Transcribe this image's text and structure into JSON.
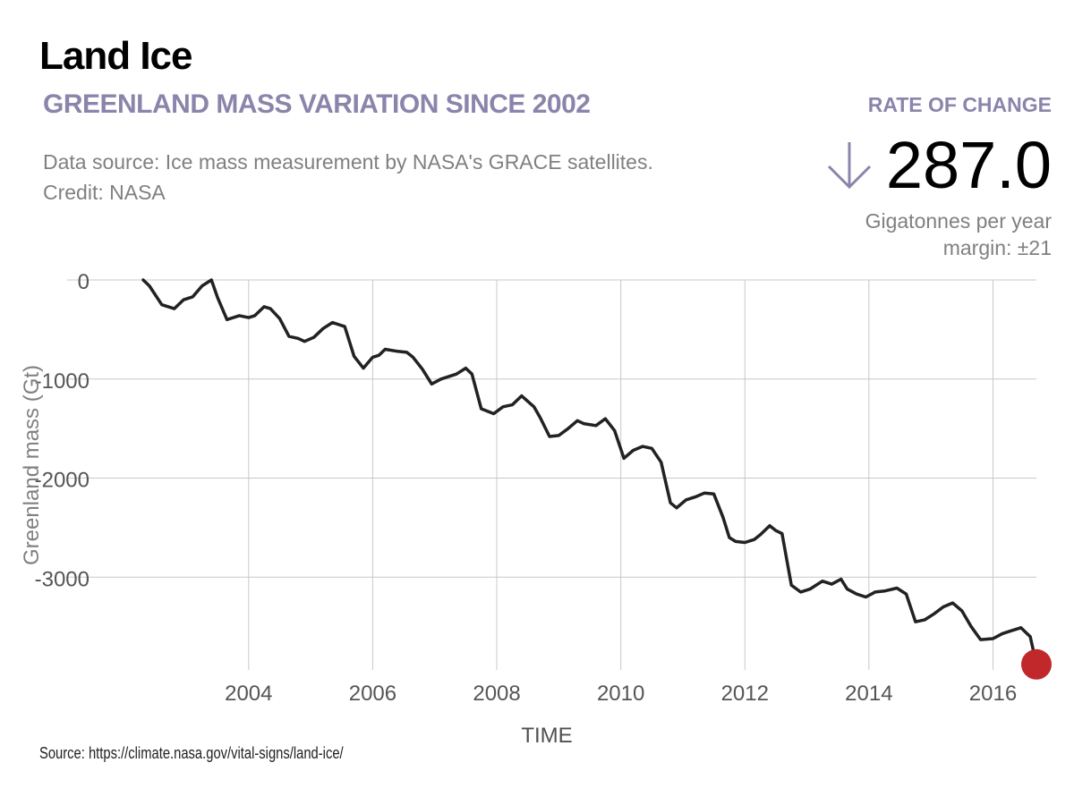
{
  "header": {
    "title": "Land Ice",
    "subtitle": "GREENLAND MASS VARIATION SINCE 2002",
    "source_line_1": "Data source: Ice mass measurement by NASA's GRACE satellites.",
    "source_line_2": "Credit: NASA"
  },
  "rate": {
    "label": "RATE OF CHANGE",
    "value": "287.0",
    "unit": "Gigatonnes per year",
    "margin": "margin: ±21",
    "arrow_icon": "arrow-down-icon",
    "arrow_color": "#8b84ab"
  },
  "footer": {
    "source": "Source: https://climate.nasa.gov/vital-signs/land-ice/"
  },
  "colors": {
    "accent": "#8b84ab",
    "line": "#222222",
    "endpoint": "#c0282b",
    "grid": "#c8c8c8",
    "axis_text": "#808080"
  },
  "chart_data": {
    "type": "line",
    "title": "",
    "xlabel": "TIME",
    "ylabel": "Greenland mass (Gt)",
    "xlim": [
      2002.3,
      2016.7
    ],
    "ylim": [
      -3900,
      0
    ],
    "x_ticks": [
      2004,
      2006,
      2008,
      2010,
      2012,
      2014,
      2016
    ],
    "y_ticks": [
      0,
      -1000,
      -2000,
      -3000
    ],
    "y_tick_labels": [
      "0",
      "-1000",
      "-2000",
      "-3000"
    ],
    "grid": true,
    "endpoint_marker": true,
    "series": [
      {
        "x": [
          2002.3,
          2002.4,
          2002.6,
          2002.8,
          2002.95,
          2003.1,
          2003.25,
          2003.4,
          2003.5,
          2003.65,
          2003.85,
          2004.0,
          2004.1,
          2004.25,
          2004.35,
          2004.5,
          2004.65,
          2004.8,
          2004.9,
          2005.05,
          2005.2,
          2005.35,
          2005.55,
          2005.7,
          2005.85,
          2006.0,
          2006.1,
          2006.2,
          2006.4,
          2006.55,
          2006.65,
          2006.8,
          2006.95,
          2007.1,
          2007.2,
          2007.35,
          2007.5,
          2007.6,
          2007.75,
          2007.95,
          2008.1,
          2008.25,
          2008.4,
          2008.6,
          2008.7,
          2008.85,
          2009.0,
          2009.15,
          2009.3,
          2009.4,
          2009.6,
          2009.75,
          2009.9,
          2010.05,
          2010.2,
          2010.35,
          2010.5,
          2010.65,
          2010.8,
          2010.9,
          2011.05,
          2011.2,
          2011.35,
          2011.5,
          2011.65,
          2011.75,
          2011.85,
          2012.0,
          2012.15,
          2012.25,
          2012.4,
          2012.5,
          2012.6,
          2012.75,
          2012.9,
          2013.05,
          2013.25,
          2013.4,
          2013.55,
          2013.65,
          2013.8,
          2013.95,
          2014.1,
          2014.25,
          2014.45,
          2014.6,
          2014.75,
          2014.9,
          2015.05,
          2015.2,
          2015.35,
          2015.5,
          2015.65,
          2015.8,
          2016.0,
          2016.15,
          2016.3,
          2016.45,
          2016.6,
          2016.7
        ],
        "y": [
          0,
          -60,
          -250,
          -290,
          -200,
          -170,
          -60,
          0,
          -180,
          -400,
          -360,
          -380,
          -360,
          -270,
          -290,
          -390,
          -570,
          -590,
          -620,
          -580,
          -490,
          -430,
          -470,
          -770,
          -890,
          -780,
          -760,
          -700,
          -720,
          -730,
          -780,
          -900,
          -1050,
          -1000,
          -980,
          -950,
          -890,
          -950,
          -1300,
          -1350,
          -1280,
          -1260,
          -1170,
          -1280,
          -1390,
          -1580,
          -1570,
          -1500,
          -1420,
          -1450,
          -1470,
          -1400,
          -1520,
          -1800,
          -1720,
          -1680,
          -1700,
          -1840,
          -2250,
          -2300,
          -2220,
          -2190,
          -2150,
          -2160,
          -2400,
          -2600,
          -2640,
          -2650,
          -2620,
          -2570,
          -2480,
          -2530,
          -2560,
          -3080,
          -3150,
          -3120,
          -3040,
          -3070,
          -3020,
          -3120,
          -3170,
          -3200,
          -3150,
          -3140,
          -3110,
          -3170,
          -3450,
          -3430,
          -3370,
          -3300,
          -3260,
          -3340,
          -3500,
          -3630,
          -3620,
          -3570,
          -3540,
          -3510,
          -3600,
          -3880
        ]
      }
    ]
  }
}
